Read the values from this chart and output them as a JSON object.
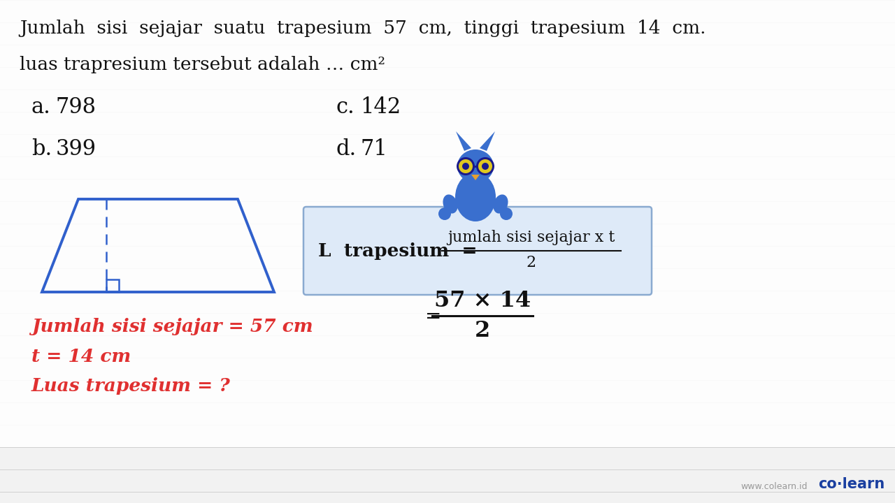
{
  "bg_color": "#f2f2f2",
  "line_color": "#d0d0d0",
  "title_line1": "Jumlah  sisi  sejajar  suatu  trapesium  57  cm,  tinggi  trapesium  14  cm.",
  "title_line2": "luas trapresium tersebut adalah … cm²",
  "text_color": "#111111",
  "red_color": "#e03030",
  "blue_color": "#3060cc",
  "formula_box_bg": "#deeaf8",
  "formula_box_border": "#8aaad0",
  "given_lines": [
    "Jumlah sisi sejajar = 57 cm",
    "t = 14 cm",
    "Luas trapesium = ?"
  ],
  "formula_label": "L  trapesium  =",
  "formula_numerator": "jumlah sisi sejajar x t",
  "formula_denominator": "2",
  "calc_equals": "=",
  "calc_numerator": "57 × 14",
  "calc_denominator": "2",
  "watermark": "www.colearn.id",
  "brand": "co·learn",
  "brand_color": "#1a3fa0",
  "watermark_color": "#999999",
  "owl_body_color": "#3a6fce",
  "owl_eye_color": "#e0c820",
  "owl_beak_color": "#e8a030"
}
